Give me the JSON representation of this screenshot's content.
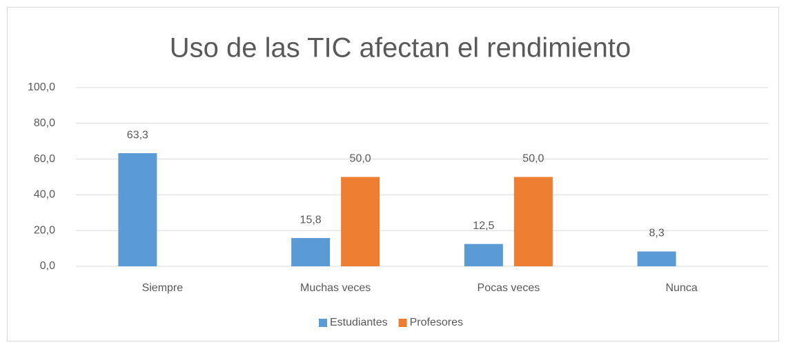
{
  "chart_data": {
    "type": "bar",
    "title": "Uso de las TIC afectan el rendimiento",
    "categories": [
      "Siempre",
      "Muchas veces",
      "Pocas veces",
      "Nunca"
    ],
    "series": [
      {
        "name": "Estudiantes",
        "color": "#5b9bd5",
        "values": [
          63.3,
          15.8,
          12.5,
          8.3
        ],
        "value_labels": [
          "63,3",
          "15,8",
          "12,5",
          "8,3"
        ]
      },
      {
        "name": "Profesores",
        "color": "#ed7d31",
        "values": [
          null,
          50.0,
          50.0,
          null
        ],
        "value_labels": [
          null,
          "50,0",
          "50,0",
          null
        ]
      }
    ],
    "ylim": [
      0,
      100
    ],
    "yticks": [
      {
        "value": 0,
        "label": "0,0"
      },
      {
        "value": 20,
        "label": "20,0"
      },
      {
        "value": 40,
        "label": "40,0"
      },
      {
        "value": 60,
        "label": "60,0"
      },
      {
        "value": 80,
        "label": "80,0"
      },
      {
        "value": 100,
        "label": "100,0"
      }
    ],
    "grid": true,
    "legend": "bottom"
  }
}
